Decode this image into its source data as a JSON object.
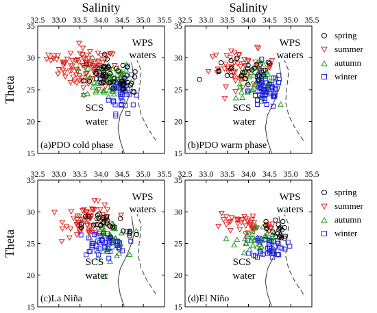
{
  "figure": {
    "colors": {
      "spring": "#000000",
      "summer": "#e0201b",
      "autumn": "#1a9a1a",
      "winter": "#1f1fe0"
    },
    "legend_top": [
      {
        "key": "spring",
        "label": "spring",
        "marker": "circle"
      },
      {
        "key": "summer",
        "label": "summer",
        "marker": "triangle-down"
      },
      {
        "key": "autumn",
        "label": "autumn",
        "marker": "triangle-up"
      },
      {
        "key": "winter",
        "label": "winter",
        "marker": "square"
      }
    ],
    "legend_bottom": [
      {
        "key": "spring",
        "label": "spring",
        "marker": "circle"
      },
      {
        "key": "summer",
        "label": "summer",
        "marker": "triangle-down"
      },
      {
        "key": "autumn",
        "label": "autumn",
        "marker": "triangle-up"
      },
      {
        "key": "winter",
        "label": "winter",
        "marker": "square"
      }
    ]
  },
  "chart_data": [
    {
      "type": "scatter",
      "id": "a",
      "title": "Salinity",
      "ylabel": "Theta",
      "xlim": [
        32.5,
        35.5
      ],
      "ylim": [
        15,
        35
      ],
      "xticks": [
        "32.5",
        "33.0",
        "33.5",
        "34.0",
        "34.5",
        "35.0",
        "35.5"
      ],
      "yticks": [
        "15",
        "20",
        "25",
        "30",
        "35"
      ],
      "annotations": {
        "wps_line1": "WPS",
        "wps_line2": "waters",
        "scs_line1": "SCS",
        "scs_line2": "water",
        "panel_label": "(a)PDO cold phase"
      },
      "clusters": {
        "spring": [
          {
            "cx": 34.1,
            "cy": 27.4,
            "sx": 0.25,
            "sy": 1.4,
            "n": 40
          },
          {
            "cx": 34.6,
            "cy": 26.6,
            "sx": 0.1,
            "sy": 0.7,
            "n": 12
          }
        ],
        "summer": [
          {
            "cx": 33.7,
            "cy": 28.3,
            "sx": 0.35,
            "sy": 1.6,
            "n": 85
          },
          {
            "cx": 32.9,
            "cy": 29.3,
            "sx": 0.2,
            "sy": 0.6,
            "n": 10
          }
        ],
        "autumn": [
          {
            "cx": 34.15,
            "cy": 26.6,
            "sx": 0.3,
            "sy": 1.6,
            "n": 55
          }
        ],
        "winter": [
          {
            "cx": 34.5,
            "cy": 24.8,
            "sx": 0.15,
            "sy": 1.7,
            "n": 45
          }
        ]
      }
    },
    {
      "type": "scatter",
      "id": "b",
      "title": "Salinity",
      "ylabel": "",
      "xlim": [
        32.5,
        35.5
      ],
      "ylim": [
        15,
        35
      ],
      "xticks": [
        "32.5",
        "33.0",
        "33.5",
        "34.0",
        "34.5",
        "35.0",
        "35.5"
      ],
      "yticks": [
        "15",
        "20",
        "25",
        "30",
        "35"
      ],
      "annotations": {
        "wps_line1": "WPS",
        "wps_line2": "waters",
        "scs_line1": "SCS",
        "scs_line2": "water",
        "panel_label": "(b)PDO warm phase"
      },
      "clusters": {
        "spring": [
          {
            "cx": 33.9,
            "cy": 27.6,
            "sx": 0.4,
            "sy": 1.1,
            "n": 30
          }
        ],
        "summer": [
          {
            "cx": 33.85,
            "cy": 28.4,
            "sx": 0.4,
            "sy": 1.4,
            "n": 55
          }
        ],
        "autumn": [
          {
            "cx": 34.2,
            "cy": 26.3,
            "sx": 0.25,
            "sy": 1.4,
            "n": 45
          }
        ],
        "winter": [
          {
            "cx": 34.4,
            "cy": 24.9,
            "sx": 0.2,
            "sy": 1.5,
            "n": 55
          }
        ]
      }
    },
    {
      "type": "scatter",
      "id": "c",
      "title": "",
      "ylabel": "Theta",
      "xlim": [
        32.5,
        35.5
      ],
      "ylim": [
        15,
        35
      ],
      "xticks": [
        "32.5",
        "33.0",
        "33.5",
        "34.0",
        "34.5",
        "35.0",
        "35.5"
      ],
      "yticks": [
        "15",
        "20",
        "25",
        "30",
        "35"
      ],
      "annotations": {
        "wps_line1": "WPS",
        "wps_line2": "waters",
        "scs_line1": "SCS",
        "scs_line2": "water",
        "panel_label": "(c)La Niña"
      },
      "clusters": {
        "spring": [
          {
            "cx": 34.05,
            "cy": 28.0,
            "sx": 0.25,
            "sy": 1.1,
            "n": 25
          },
          {
            "cx": 34.7,
            "cy": 26.6,
            "sx": 0.08,
            "sy": 0.4,
            "n": 5
          }
        ],
        "summer": [
          {
            "cx": 33.75,
            "cy": 28.6,
            "sx": 0.3,
            "sy": 1.3,
            "n": 70
          }
        ],
        "autumn": [
          {
            "cx": 34.2,
            "cy": 25.8,
            "sx": 0.2,
            "sy": 1.5,
            "n": 40
          }
        ],
        "winter": [
          {
            "cx": 34.0,
            "cy": 24.9,
            "sx": 0.3,
            "sy": 1.0,
            "n": 45
          }
        ]
      }
    },
    {
      "type": "scatter",
      "id": "d",
      "title": "",
      "ylabel": "",
      "xlim": [
        32.5,
        35.5
      ],
      "ylim": [
        15,
        35
      ],
      "xticks": [
        "32.5",
        "33.0",
        "33.5",
        "34.0",
        "34.5",
        "35.0",
        "35.5"
      ],
      "yticks": [
        "15",
        "20",
        "25",
        "30",
        "35"
      ],
      "annotations": {
        "wps_line1": "WPS",
        "wps_line2": "waters",
        "scs_line1": "SCS",
        "scs_line2": "water",
        "panel_label": "(d)El Niño"
      },
      "clusters": {
        "spring": [
          {
            "cx": 34.75,
            "cy": 26.6,
            "sx": 0.1,
            "sy": 0.8,
            "n": 15
          },
          {
            "cx": 34.4,
            "cy": 27.8,
            "sx": 0.15,
            "sy": 0.5,
            "n": 6
          }
        ],
        "summer": [
          {
            "cx": 34.0,
            "cy": 28.0,
            "sx": 0.25,
            "sy": 1.0,
            "n": 30
          },
          {
            "cx": 33.5,
            "cy": 29.0,
            "sx": 0.15,
            "sy": 0.8,
            "n": 8
          },
          {
            "cx": 34.5,
            "cy": 27.8,
            "sx": 0.06,
            "sy": 0.3,
            "n": 6
          }
        ],
        "autumn": [
          {
            "cx": 34.2,
            "cy": 25.5,
            "sx": 0.25,
            "sy": 1.2,
            "n": 40
          }
        ],
        "winter": [
          {
            "cx": 34.5,
            "cy": 24.5,
            "sx": 0.2,
            "sy": 0.9,
            "n": 40
          }
        ]
      }
    }
  ]
}
